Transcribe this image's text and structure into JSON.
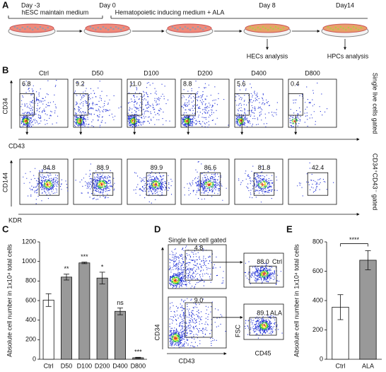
{
  "panel_labels": [
    "A",
    "B",
    "C",
    "D",
    "E"
  ],
  "panel_a": {
    "days": [
      "Day -3",
      "Day 0",
      "Day 8",
      "Day14"
    ],
    "media": [
      "hESC maintain medium",
      "Hematopoietic inducing medium + ALA"
    ],
    "analyses": [
      "HECs analysis",
      "HPCs analysis"
    ]
  },
  "panel_b": {
    "conditions": [
      "Ctrl",
      "D50",
      "D100",
      "D200",
      "D400",
      "D800"
    ],
    "top_gates": [
      "6.8",
      "9.2",
      "11.0",
      "8.8",
      "5.6",
      "0.4"
    ],
    "bottom_gates": [
      "84.8",
      "88.9",
      "89.9",
      "86.6",
      "81.8",
      "42.4"
    ],
    "top_axes": {
      "y": "CD34",
      "x": "CD43"
    },
    "bottom_axes": {
      "y": "CD144",
      "x": "KDR"
    },
    "top_gating": "Single live cells gated",
    "bottom_gating": "CD34⁺CD43⁻ gated"
  },
  "panel_d": {
    "gating": "Single live cell gated",
    "left_gates": [
      "4.8",
      "9.0"
    ],
    "right_gates": [
      "88.0",
      "89.1"
    ],
    "groups": [
      "Ctrl",
      "ALA"
    ],
    "left_axes": {
      "y": "CD34",
      "x": "CD43"
    },
    "right_axes": {
      "y": "FSC",
      "x": "CD45"
    }
  },
  "chart_data": [
    {
      "type": "bar",
      "ylabel": "Absolute cell number in 1x10⁴ total cells",
      "categories": [
        "Ctrl",
        "D50",
        "D100",
        "D200",
        "D400",
        "D800"
      ],
      "values": [
        605,
        840,
        985,
        830,
        490,
        15
      ],
      "errors": [
        65,
        30,
        8,
        60,
        35,
        5
      ],
      "colors": [
        "#ffffff",
        "#999999",
        "#999999",
        "#999999",
        "#999999",
        "#999999"
      ],
      "annotations": [
        null,
        "**",
        "***",
        "*",
        "ns",
        "***"
      ],
      "ylim": [
        0,
        1200
      ],
      "yticks": [
        0,
        200,
        400,
        600,
        800,
        1000,
        1200
      ]
    },
    {
      "type": "bar",
      "ylabel": "Absolute cell number in 1x10⁴ total cells",
      "categories": [
        "Ctrl",
        "ALA"
      ],
      "values": [
        355,
        675
      ],
      "errors": [
        85,
        65
      ],
      "colors": [
        "#ffffff",
        "#999999"
      ],
      "significance": "****",
      "ylim": [
        0,
        800
      ],
      "yticks": [
        0,
        200,
        400,
        600,
        800
      ]
    }
  ]
}
